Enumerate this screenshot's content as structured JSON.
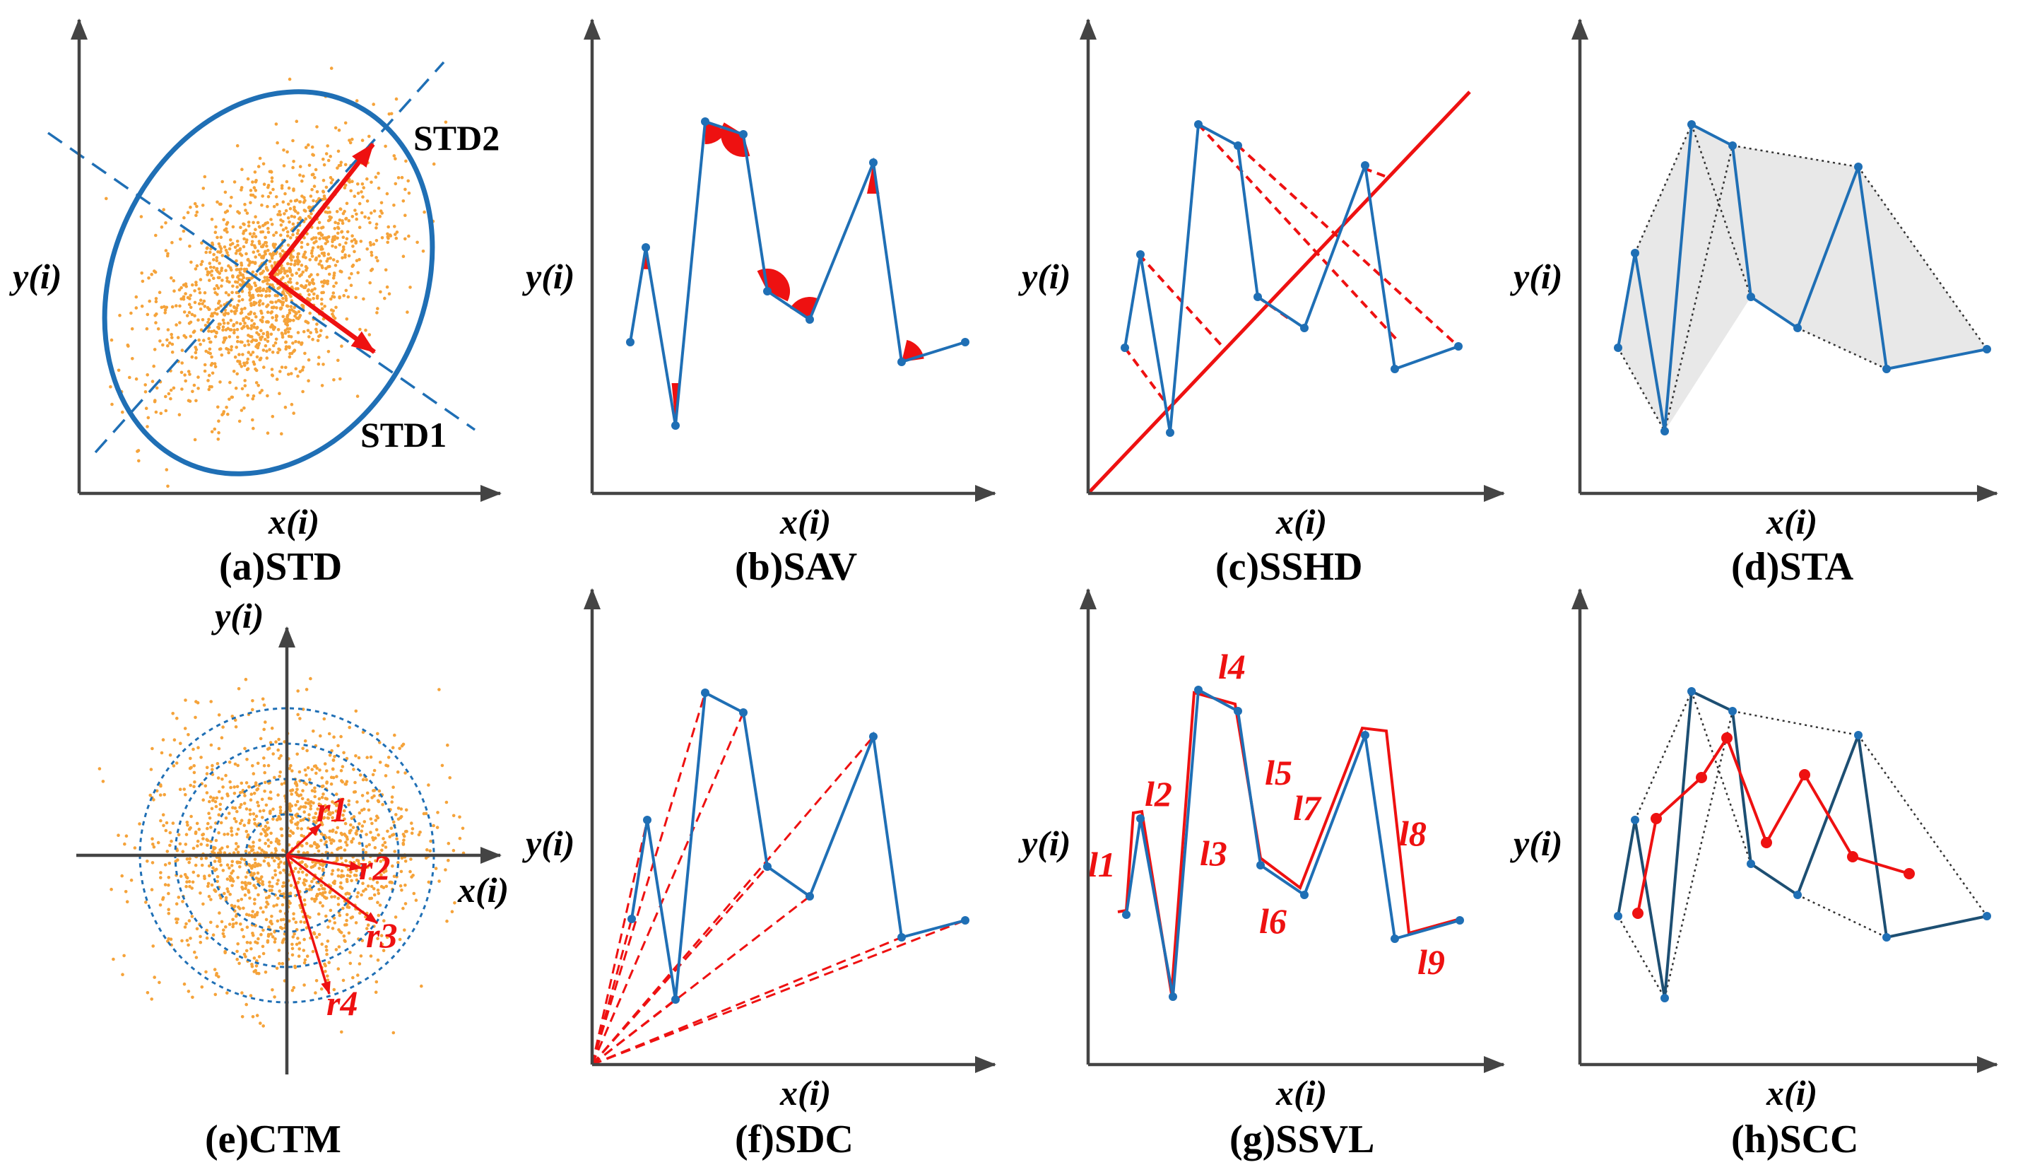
{
  "figure": {
    "x_axis_label": "x(i)",
    "y_axis_label": "y(i)"
  },
  "colors": {
    "blue": "#1f6fb5",
    "red": "#ee1111",
    "orange": "#f5a33a",
    "axis": "#444444",
    "dark_blue": "#1d4f73"
  },
  "panels": {
    "std": {
      "caption": "(a)STD",
      "major_label": "STD2",
      "minor_label": "STD1"
    },
    "sav": {
      "caption": "(b)SAV"
    },
    "sshd": {
      "caption": "(c)SSHD"
    },
    "sta": {
      "caption": "(d)STA"
    },
    "ctm": {
      "caption": "(e)CTM",
      "radius_labels": [
        "r1",
        "r2",
        "r3",
        "r4"
      ]
    },
    "sdc": {
      "caption": "(f)SDC"
    },
    "ssvl": {
      "caption": "(g)SSVL",
      "segment_labels": [
        "l1",
        "l2",
        "l3",
        "l4",
        "l5",
        "l6",
        "l7",
        "l8",
        "l9"
      ]
    },
    "scc": {
      "caption": "(h)SCC"
    }
  }
}
